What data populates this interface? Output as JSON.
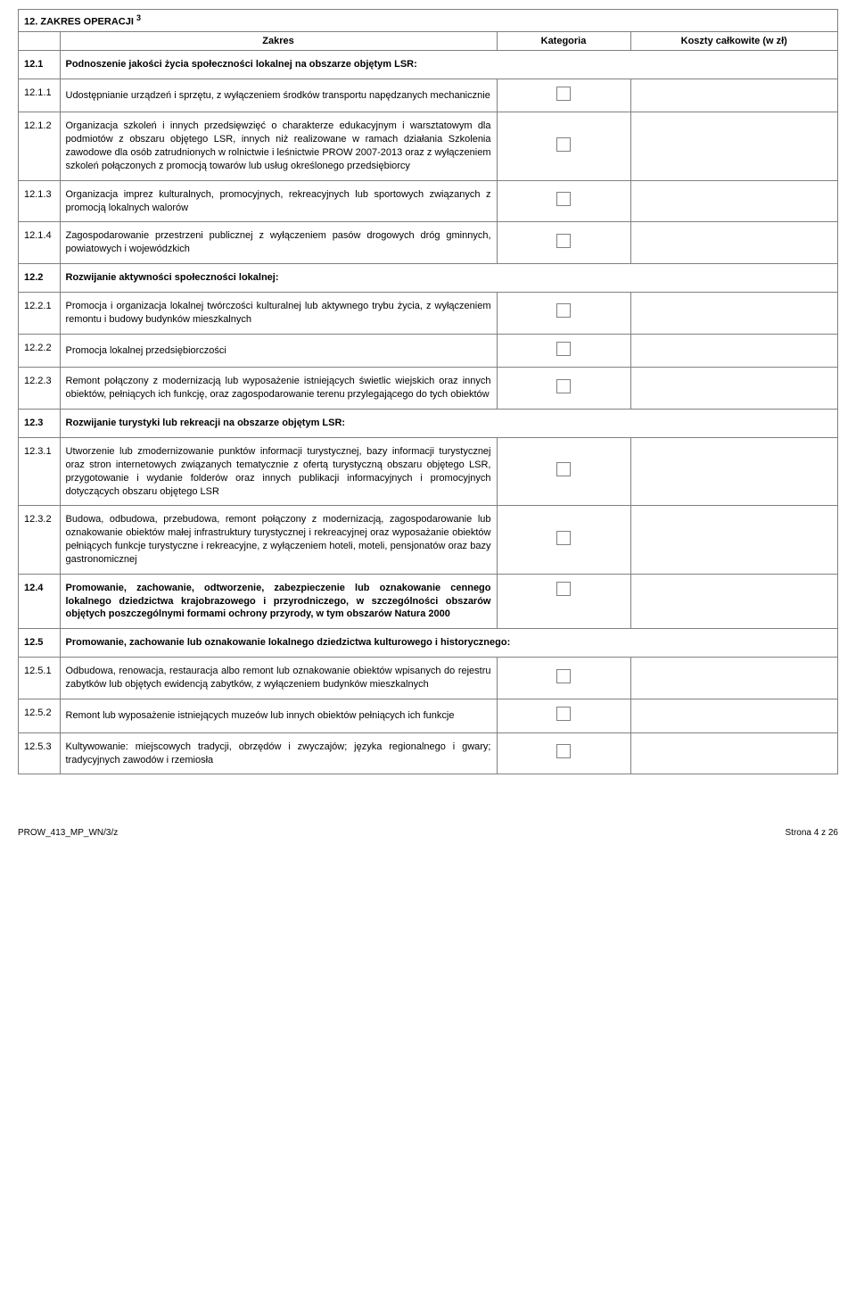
{
  "section": {
    "num": "12.",
    "title": "ZAKRES OPERACJI",
    "sup": "3"
  },
  "columns": {
    "zakres": "Zakres",
    "kategoria": "Kategoria",
    "koszty": "Koszty całkowite (w zł)"
  },
  "groups": [
    {
      "num": "12.1",
      "title": "Podnoszenie jakości życia społeczności lokalnej na obszarze objętym LSR:",
      "rows": [
        {
          "num": "12.1.1",
          "text": "Udostępnianie urządzeń i sprzętu, z wyłączeniem środków transportu napędzanych mechanicznie"
        },
        {
          "num": "12.1.2",
          "text": "Organizacja szkoleń i innych przedsięwzięć o charakterze edukacyjnym i warsztatowym dla podmiotów z obszaru objętego LSR, innych niż realizowane w ramach działania Szkolenia zawodowe dla osób zatrudnionych w rolnictwie i leśnictwie PROW 2007-2013 oraz z wyłączeniem szkoleń połączonych z promocją towarów lub usług określonego przedsiębiorcy"
        },
        {
          "num": "12.1.3",
          "text": "Organizacja imprez kulturalnych, promocyjnych, rekreacyjnych lub sportowych związanych z promocją lokalnych walorów"
        },
        {
          "num": "12.1.4",
          "text": "Zagospodarowanie przestrzeni publicznej z wyłączeniem pasów drogowych dróg gminnych, powiatowych i wojewódzkich"
        }
      ]
    },
    {
      "num": "12.2",
      "title": "Rozwijanie aktywności społeczności lokalnej:",
      "rows": [
        {
          "num": "12.2.1",
          "text": "Promocja i organizacja lokalnej twórczości kulturalnej lub aktywnego trybu życia, z wyłączeniem remontu i budowy budynków mieszkalnych"
        },
        {
          "num": "12.2.2",
          "text": "Promocja lokalnej przedsiębiorczości"
        },
        {
          "num": "12.2.3",
          "text": "Remont połączony z modernizacją lub wyposażenie istniejących świetlic wiejskich oraz innych obiektów, pełniących ich funkcję, oraz zagospodarowanie terenu przylegającego do tych obiektów"
        }
      ]
    },
    {
      "num": "12.3",
      "title": "Rozwijanie turystyki lub rekreacji na obszarze objętym LSR:",
      "rows": [
        {
          "num": "12.3.1",
          "text": "Utworzenie lub zmodernizowanie punktów informacji turystycznej, bazy informacji turystycznej oraz stron internetowych związanych tematycznie z ofertą turystyczną obszaru objętego LSR, przygotowanie i wydanie folderów oraz innych publikacji informacyjnych i promocyjnych dotyczących obszaru objętego LSR"
        },
        {
          "num": "12.3.2",
          "text": "Budowa, odbudowa, przebudowa, remont połączony z modernizacją, zagospodarowanie lub oznakowanie obiektów małej infrastruktury turystycznej i rekreacyjnej oraz wyposażanie obiektów pełniących funkcje turystyczne i rekreacyjne, z wyłączeniem hoteli, moteli, pensjonatów oraz bazy gastronomicznej"
        }
      ]
    },
    {
      "num": "12.4",
      "boldSingle": true,
      "title": "Promowanie, zachowanie, odtworzenie, zabezpieczenie lub oznakowanie cennego lokalnego dziedzictwa krajobrazowego i przyrodniczego, w szczególności obszarów objętych poszczególnymi formami ochrony przyrody, w tym obszarów Natura 2000",
      "rows": []
    },
    {
      "num": "12.5",
      "title": "Promowanie, zachowanie lub oznakowanie lokalnego dziedzictwa kulturowego i historycznego:",
      "rows": [
        {
          "num": "12.5.1",
          "text": "Odbudowa, renowacja, restauracja albo remont lub oznakowanie  obiektów wpisanych do rejestru zabytków lub objętych ewidencją zabytków, z wyłączeniem budynków mieszkalnych"
        },
        {
          "num": "12.5.2",
          "text": "Remont lub wyposażenie istniejących muzeów lub innych obiektów pełniących ich funkcje"
        },
        {
          "num": "12.5.3",
          "text": "Kultywowanie:    miejscowych    tradycji,    obrzędów    i    zwyczajów;    języka regionalnego i gwary; tradycyjnych zawodów i rzemiosła"
        }
      ]
    }
  ],
  "footer": {
    "left": "PROW_413_MP_WN/3/z",
    "right": "Strona 4 z 26"
  }
}
